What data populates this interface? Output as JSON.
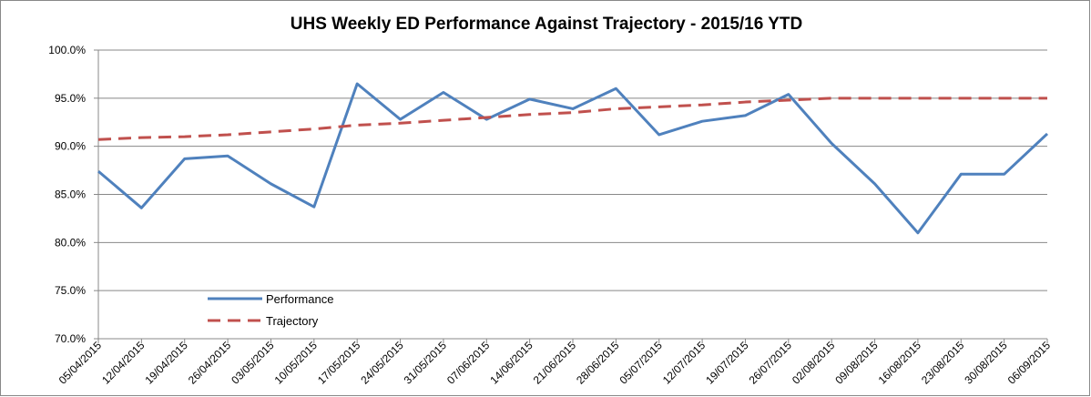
{
  "chart_data": {
    "type": "line",
    "title": "UHS Weekly ED Performance Against Trajectory - 2015/16 YTD",
    "categories": [
      "05/04/2015",
      "12/04/2015",
      "19/04/2015",
      "26/04/2015",
      "03/05/2015",
      "10/05/2015",
      "17/05/2015",
      "24/05/2015",
      "31/05/2015",
      "07/06/2015",
      "14/06/2015",
      "21/06/2015",
      "28/06/2015",
      "05/07/2015",
      "12/07/2015",
      "19/07/2015",
      "26/07/2015",
      "02/08/2015",
      "09/08/2015",
      "16/08/2015",
      "23/08/2015",
      "30/08/2015",
      "06/09/2015"
    ],
    "series": [
      {
        "name": "Performance",
        "color": "#4f81bd",
        "dash": false,
        "values": [
          87.4,
          83.6,
          88.7,
          89.0,
          86.1,
          83.7,
          96.5,
          92.8,
          95.6,
          92.8,
          94.9,
          93.9,
          96.0,
          91.2,
          92.6,
          93.2,
          95.4,
          90.3,
          86.1,
          81.0,
          87.1,
          87.1,
          91.3
        ]
      },
      {
        "name": "Trajectory",
        "color": "#c0504d",
        "dash": true,
        "values": [
          90.7,
          90.9,
          91.0,
          91.2,
          91.5,
          91.8,
          92.2,
          92.4,
          92.7,
          93.0,
          93.3,
          93.5,
          93.9,
          94.1,
          94.3,
          94.6,
          94.8,
          95.0,
          95.0,
          95.0,
          95.0,
          95.0,
          95.0
        ]
      }
    ],
    "ylim": [
      70,
      100
    ],
    "yticks": [
      {
        "value": 70,
        "label": "70.0%"
      },
      {
        "value": 75,
        "label": "75.0%"
      },
      {
        "value": 80,
        "label": "80.0%"
      },
      {
        "value": 85,
        "label": "85.0%"
      },
      {
        "value": 90,
        "label": "90.0%"
      },
      {
        "value": 95,
        "label": "95.0%"
      },
      {
        "value": 100,
        "label": "100.0%"
      }
    ],
    "grid": true,
    "legend": "lower left"
  }
}
